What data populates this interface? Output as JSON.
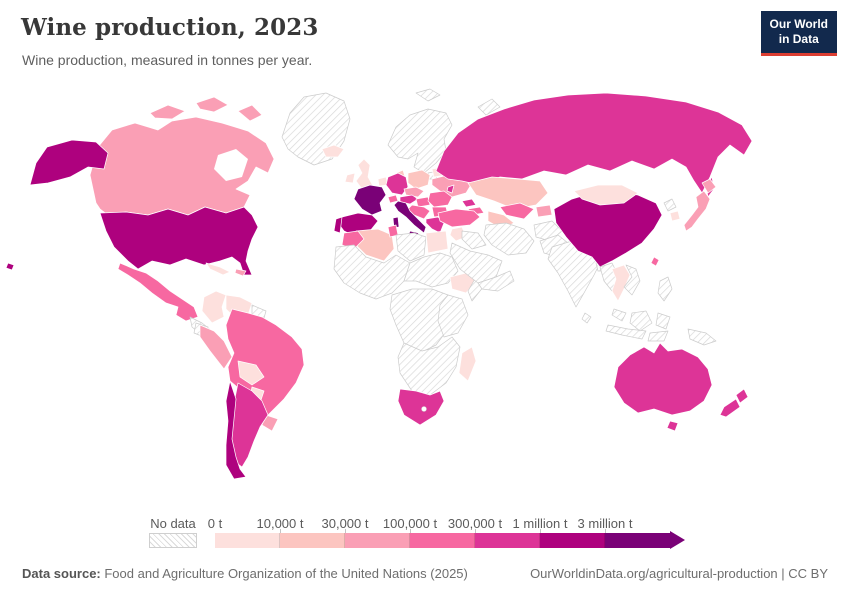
{
  "header": {
    "title": "Wine production, 2023",
    "subtitle": "Wine production, measured in tonnes per year."
  },
  "logo": {
    "line1": "Our World",
    "line2": "in Data"
  },
  "legend": {
    "no_data_label": "No data",
    "buckets": [
      {
        "label": "0 t",
        "color": "#fde0dd"
      },
      {
        "label": "10,000 t",
        "color": "#fcc5c0"
      },
      {
        "label": "30,000 t",
        "color": "#fa9fb5"
      },
      {
        "label": "100,000 t",
        "color": "#f768a1"
      },
      {
        "label": "300,000 t",
        "color": "#dd3497"
      },
      {
        "label": "1 million t",
        "color": "#ae017e"
      },
      {
        "label": "3 million t",
        "color": "#7a0177"
      }
    ]
  },
  "footer": {
    "source_label": "Data source:",
    "source_text": " Food and Agriculture Organization of the United Nations (2025)",
    "credit": "OurWorldinData.org/agricultural-production | CC BY"
  },
  "chart_data": {
    "type": "choropleth",
    "title": "Wine production, 2023",
    "unit": "tonnes per year",
    "no_data_style": "hatched",
    "bins": [
      "0 t",
      "10,000 t",
      "30,000 t",
      "100,000 t",
      "300,000 t",
      "1 million t",
      "3 million t"
    ],
    "countries": {
      "united-states": 5,
      "alaska": 5,
      "hawaii": 5,
      "canada": 2,
      "canada-islands-1": 2,
      "canada-islands-2": 2,
      "canada-islands-3": 2,
      "greenland": "nd",
      "mexico": 3,
      "central-america": "nd",
      "cuba": 0,
      "hispaniola": 2,
      "colombia": 0,
      "venezuela": 0,
      "guyana": "nd",
      "ecuador": "nd",
      "peru": 2,
      "brazil": 3,
      "bolivia": 0,
      "paraguay": 0,
      "uruguay": 2,
      "argentina": 4,
      "chile": 5,
      "iceland": 0,
      "ireland": 0,
      "united-kingdom": 0,
      "scandinavia": "nd",
      "baltics": "nd",
      "denmark": 1,
      "benelux": 0,
      "germany": 4,
      "poland": 1,
      "czechia-slovakia": 2,
      "belarus": 0,
      "ukraine": 2,
      "moldova": 4,
      "france": 6,
      "switzerland": 3,
      "austria": 4,
      "hungary": 3,
      "romania": 3,
      "balkans-west": 3,
      "bulgaria": 3,
      "greece": 4,
      "crete": 4,
      "italy": 6,
      "sicily": 6,
      "sardinia": 6,
      "spain": 5,
      "portugal": 5,
      "morocco": 3,
      "algeria": 1,
      "tunisia": 3,
      "libya": "nd",
      "egypt": 0,
      "west-africa": "nd",
      "sahel-sudan": "nd",
      "ethiopia": 0,
      "somalia": "nd",
      "central-africa": "nd",
      "east-africa": "nd",
      "southern-africa": "nd",
      "south-africa": 4,
      "madagascar": 0,
      "russia": 4,
      "sakhalin": 4,
      "svalbard": "nd",
      "novaya-zemlya": "nd",
      "kazakhstan": 1,
      "uzbekistan": 3,
      "turkmenistan": 1,
      "kyrgyzstan-tajikistan": 2,
      "georgia": 4,
      "armenia-azerbaijan": 3,
      "turkey": 3,
      "levant": 0,
      "iraq": "nd",
      "iran": "nd",
      "saudi-arabia": "nd",
      "yemen-oman": "nd",
      "afghanistan": "nd",
      "pakistan": "nd",
      "india": "nd",
      "sri-lanka": "nd",
      "bangladesh": "nd",
      "china": 5,
      "mongolia": 0,
      "north-korea": "nd",
      "south-korea": 0,
      "japan": 2,
      "japan-hokkaido": 2,
      "taiwan": 3,
      "myanmar": "nd",
      "thailand-laos": 0,
      "vietnam": "nd",
      "malaysia": "nd",
      "indonesia-west": "nd",
      "borneo": "nd",
      "sulawesi": "nd",
      "indonesia-east": "nd",
      "philippines": "nd",
      "papua-new-guinea": "nd",
      "australia": 4,
      "tasmania": 4,
      "new-zealand-north": 4,
      "new-zealand-south": 4
    }
  }
}
